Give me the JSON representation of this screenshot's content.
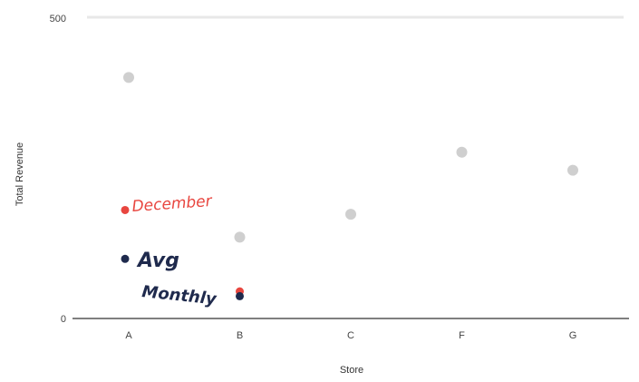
{
  "chart_data": {
    "type": "scatter",
    "title": "",
    "xlabel": "Store",
    "ylabel": "Total Revenue",
    "categories": [
      "A",
      "B",
      "C",
      "F",
      "G"
    ],
    "ylim": [
      0,
      500
    ],
    "yticks": [
      "0",
      "500"
    ],
    "grid": false,
    "series": [
      {
        "name": "",
        "color": "#cfcfcf",
        "points": [
          {
            "x": "A",
            "y": 400
          },
          {
            "x": "B",
            "y": 135
          },
          {
            "x": "C",
            "y": 173
          },
          {
            "x": "F",
            "y": 276
          },
          {
            "x": "G",
            "y": 246
          }
        ]
      }
    ],
    "annotations": [
      {
        "text": "December",
        "color": "#e8463f"
      },
      {
        "text": "Avg",
        "color": "#1f2a4d"
      },
      {
        "text": "Monthly",
        "color": "#1f2a4d"
      }
    ],
    "annotation_markers": [
      {
        "x": "A",
        "y": 180,
        "color": "#e8463f"
      },
      {
        "x": "A",
        "y": 99,
        "color": "#1f2a4d"
      },
      {
        "x": "B",
        "y": 45,
        "color": "#e8463f"
      },
      {
        "x": "B",
        "y": 37,
        "color": "#1f2a4d"
      }
    ]
  }
}
